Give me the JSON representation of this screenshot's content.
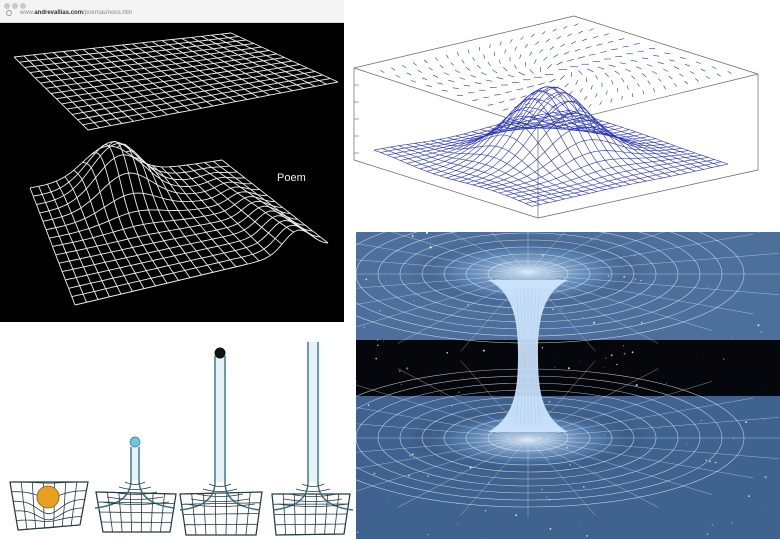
{
  "browser": {
    "url_prefix": "www.",
    "url_domain": "andrevallias.com",
    "url_path": "/poemas/nous.htm"
  },
  "caption": "Poem",
  "colors": {
    "grid_white": "#f0f0f0",
    "plot_blue": "#2a35b5",
    "tube_teal": "#2e6f86",
    "ball_orange": "#e8a020",
    "ball_blue": "#6ec3e0",
    "ball_black": "#111111",
    "wormhole_glow": "#cfe6ff"
  },
  "panels": [
    "warped-spacetime-grid-panel",
    "3d-surface-vector-field-plot",
    "gravity-well-funnel-sequence",
    "wormhole-illustration"
  ]
}
